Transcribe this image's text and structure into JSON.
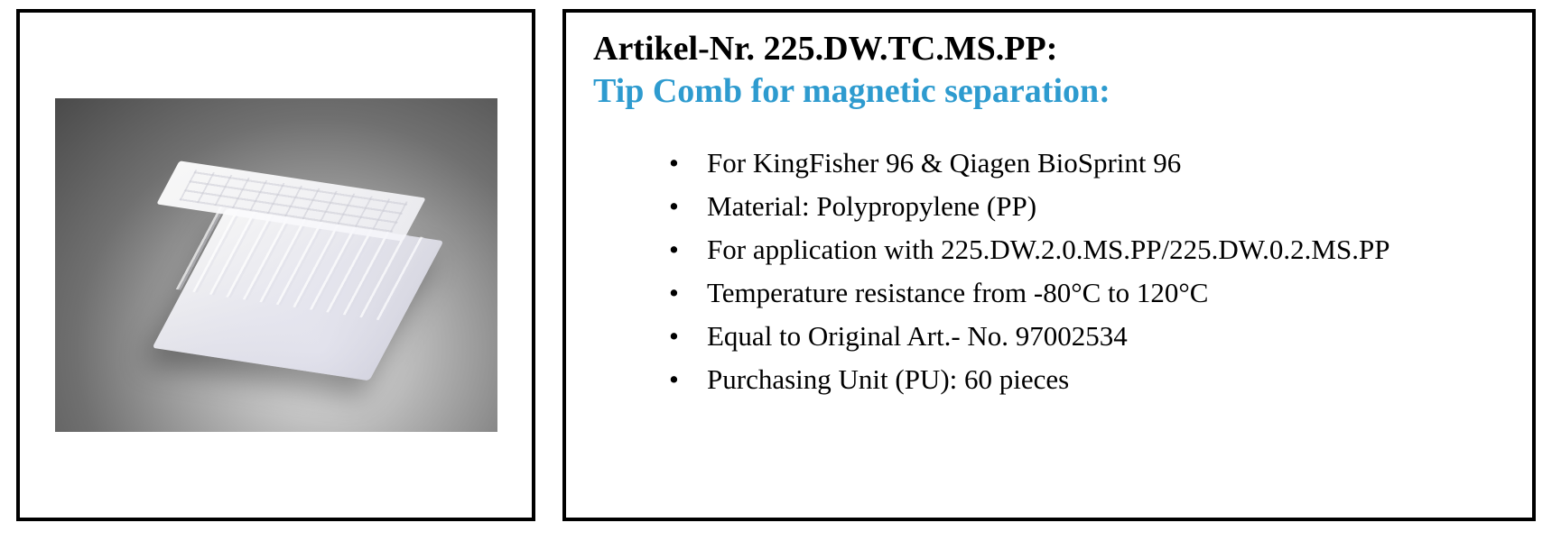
{
  "article": {
    "label_prefix": "Artikel-Nr. ",
    "number": "225.DW.TC.MS.PP",
    "suffix": ":",
    "title": "Tip Comb for magnetic separation:"
  },
  "features": [
    "For KingFisher 96 & Qiagen BioSprint 96",
    "Material: Polypropylene (PP)",
    "For application with 225.DW.2.0.MS.PP/225.DW.0.2.MS.PP",
    "Temperature resistance from -80°C to 120°C",
    "Equal to Original Art.- No. 97002534",
    "Purchasing Unit (PU): 60 pieces"
  ],
  "colors": {
    "border": "#000000",
    "title_accent": "#2e9bcf",
    "text": "#000000",
    "background": "#ffffff"
  },
  "typography": {
    "heading_fontsize": 38,
    "list_fontsize": 31,
    "font_family": "Times New Roman"
  },
  "image": {
    "description": "translucent polypropylene 96-well tip comb on deep-well plate",
    "background_gradient": [
      "#e8e8e8",
      "#a8a8a8",
      "#707070",
      "#4a4a4a"
    ]
  },
  "layout": {
    "total_width": 1729,
    "total_height": 600,
    "image_panel_width": 575,
    "info_panel_width": 1078,
    "panel_gap": 30,
    "border_width": 4
  }
}
